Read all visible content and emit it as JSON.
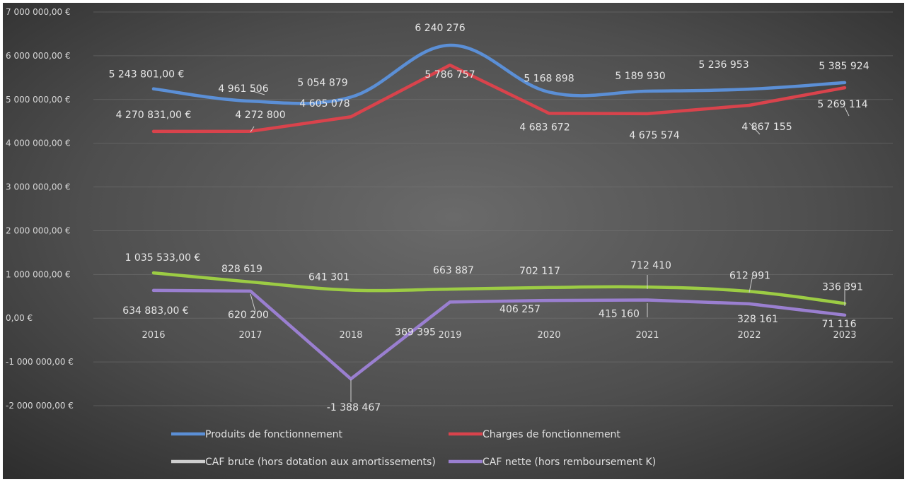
{
  "chart_data": {
    "type": "line",
    "title": "",
    "xlabel": "",
    "ylabel": "",
    "categories": [
      "2016",
      "2017",
      "2018",
      "2019",
      "2020",
      "2021",
      "2022",
      "2023"
    ],
    "ylim": [
      -2000000,
      7000000
    ],
    "yticks": [
      7000000,
      6000000,
      5000000,
      4000000,
      3000000,
      2000000,
      1000000,
      0,
      -1000000,
      -2000000
    ],
    "ytick_labels": [
      "7 000 000,00 €",
      "6 000 000,00 €",
      "5 000 000,00 €",
      "4 000 000,00 €",
      "3 000 000,00 €",
      "2 000 000,00 €",
      "1 000 000,00 €",
      "0,00 €",
      "-1 000 000,00 €",
      "-2 000 000,00 €"
    ],
    "grid": true,
    "legend_position": "bottom",
    "series": [
      {
        "name": "Produits de fonctionnement",
        "color": "#5b8fd6",
        "values": [
          5243801,
          4961506,
          5054879,
          6240276,
          5168898,
          5189930,
          5236953,
          5385924
        ],
        "labels": [
          "5 243 801,00 €",
          "4 961 506",
          "5 054 879",
          "6 240 276",
          "5 168 898",
          "5 189 930",
          "5 236 953",
          "5 385 924"
        ]
      },
      {
        "name": "Charges de fonctionnement",
        "color": "#d9434c",
        "values": [
          4270831,
          4272800,
          4605078,
          5786757,
          4683672,
          4675574,
          4867155,
          5269114
        ],
        "labels": [
          "4 270 831,00 €",
          "4 272 800",
          "4 605 078",
          "5 786 757",
          "4 683 672",
          "4 675 574",
          "4 867 155",
          "5 269 114"
        ]
      },
      {
        "name": "CAF brute (hors dotation aux amortissements)",
        "color": "#9ccc44",
        "legend_color": "#cfcfcf",
        "values": [
          1035533,
          828619,
          641301,
          663887,
          702117,
          712410,
          612991,
          336391
        ],
        "labels": [
          "1 035 533,00 €",
          "828 619",
          "641 301",
          "663 887",
          "702 117",
          "712 410",
          "612 991",
          "336 391"
        ]
      },
      {
        "name": "CAF nette (hors remboursement K)",
        "color": "#9a7fd0",
        "values": [
          634883,
          620200,
          -1388467,
          369395,
          406257,
          415160,
          328161,
          71116
        ],
        "labels": [
          "634 883,00 €",
          "620 200",
          "-1 388 467",
          "369 395",
          "406 257",
          "415 160",
          "328 161",
          "71 116"
        ]
      }
    ]
  }
}
